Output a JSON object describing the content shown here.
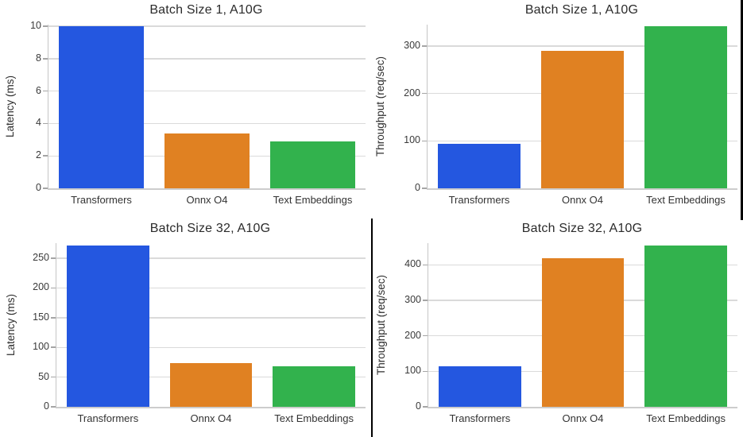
{
  "page": {
    "background": "#ffffff"
  },
  "palette": {
    "blue": "#2457E0",
    "orange": "#E08122",
    "green": "#32B24D",
    "gridline": "#dadada",
    "spine": "#c6c6c6",
    "border_line": "#000000"
  },
  "decorations": {
    "top_right_border_line": "black vertical line, right edge of top-right chart",
    "bottom_divider_line": "black vertical line between bottom-left and bottom-right charts"
  },
  "chart_data": [
    {
      "type": "bar",
      "title": "Batch Size 1, A10G",
      "xlabel": "",
      "ylabel": "Latency (ms)",
      "categories": [
        "Transformers",
        "Onnx O4",
        "Text Embeddings"
      ],
      "values": [
        10.0,
        3.4,
        2.9
      ],
      "bar_colors": [
        "#2457E0",
        "#E08122",
        "#32B24D"
      ],
      "yticks": [
        0,
        2,
        4,
        6,
        8,
        10
      ],
      "ylim": [
        0,
        10.1
      ],
      "grid": true,
      "legend_position": "none"
    },
    {
      "type": "bar",
      "title": "Batch Size 1, A10G",
      "xlabel": "",
      "ylabel": "Throughput (req/sec)",
      "categories": [
        "Transformers",
        "Onnx O4",
        "Text Embeddings"
      ],
      "values": [
        93,
        289,
        341
      ],
      "bar_colors": [
        "#2457E0",
        "#E08122",
        "#32B24D"
      ],
      "yticks": [
        0,
        100,
        200,
        300
      ],
      "ylim": [
        0,
        345
      ],
      "grid": true,
      "legend_position": "none"
    },
    {
      "type": "bar",
      "title": "Batch Size 32, A10G",
      "xlabel": "",
      "ylabel": "Latency (ms)",
      "categories": [
        "Transformers",
        "Onnx O4",
        "Text Embeddings"
      ],
      "values": [
        272,
        74,
        68
      ],
      "bar_colors": [
        "#2457E0",
        "#E08122",
        "#32B24D"
      ],
      "yticks": [
        0,
        50,
        100,
        150,
        200,
        250
      ],
      "ylim": [
        0,
        275.5
      ],
      "grid": true,
      "legend_position": "none"
    },
    {
      "type": "bar",
      "title": "Batch Size 32, A10G",
      "xlabel": "",
      "ylabel": "Throughput (req/sec)",
      "categories": [
        "Transformers",
        "Onnx O4",
        "Text Embeddings"
      ],
      "values": [
        115,
        419,
        455
      ],
      "bar_colors": [
        "#2457E0",
        "#E08122",
        "#32B24D"
      ],
      "yticks": [
        0,
        100,
        200,
        300,
        400
      ],
      "ylim": [
        0,
        461
      ],
      "grid": true,
      "legend_position": "none"
    }
  ]
}
